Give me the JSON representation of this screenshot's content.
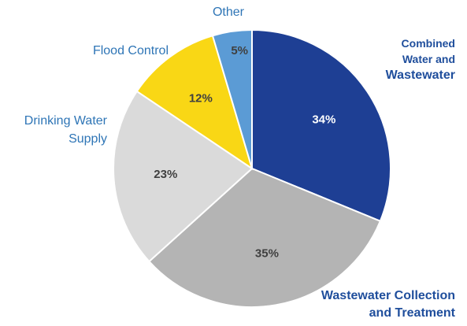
{
  "chart_data": {
    "type": "pie",
    "start_angle_deg": 0,
    "direction": "clockwise",
    "slices": [
      {
        "label": "Combined Water and Wastewater",
        "label_lines": [
          "Combined",
          "Water and",
          "Wastewater"
        ],
        "value": 34,
        "value_label": "34%",
        "color": "#1e3f94",
        "value_text_color": "#ffffff"
      },
      {
        "label": "Wastewater Collection and Treatment",
        "label_lines": [
          "Wastewater Collection",
          "and Treatment"
        ],
        "value": 35,
        "value_label": "35%",
        "color": "#b4b4b4",
        "value_text_color": "#404040"
      },
      {
        "label": "Drinking Water Supply",
        "label_lines": [
          "Drinking Water",
          "Supply"
        ],
        "value": 23,
        "value_label": "23%",
        "color": "#dadada",
        "value_text_color": "#404040"
      },
      {
        "label": "Flood Control",
        "label_lines": [
          "Flood Control"
        ],
        "value": 12,
        "value_label": "12%",
        "color": "#f9d715",
        "value_text_color": "#404040"
      },
      {
        "label": "Other",
        "label_lines": [
          "Other"
        ],
        "value": 5,
        "value_label": "5%",
        "color": "#5b9bd5",
        "value_text_color": "#404040"
      }
    ],
    "label_color": "#2e75b6",
    "emphasis_label_color": "#1f4e9c"
  }
}
